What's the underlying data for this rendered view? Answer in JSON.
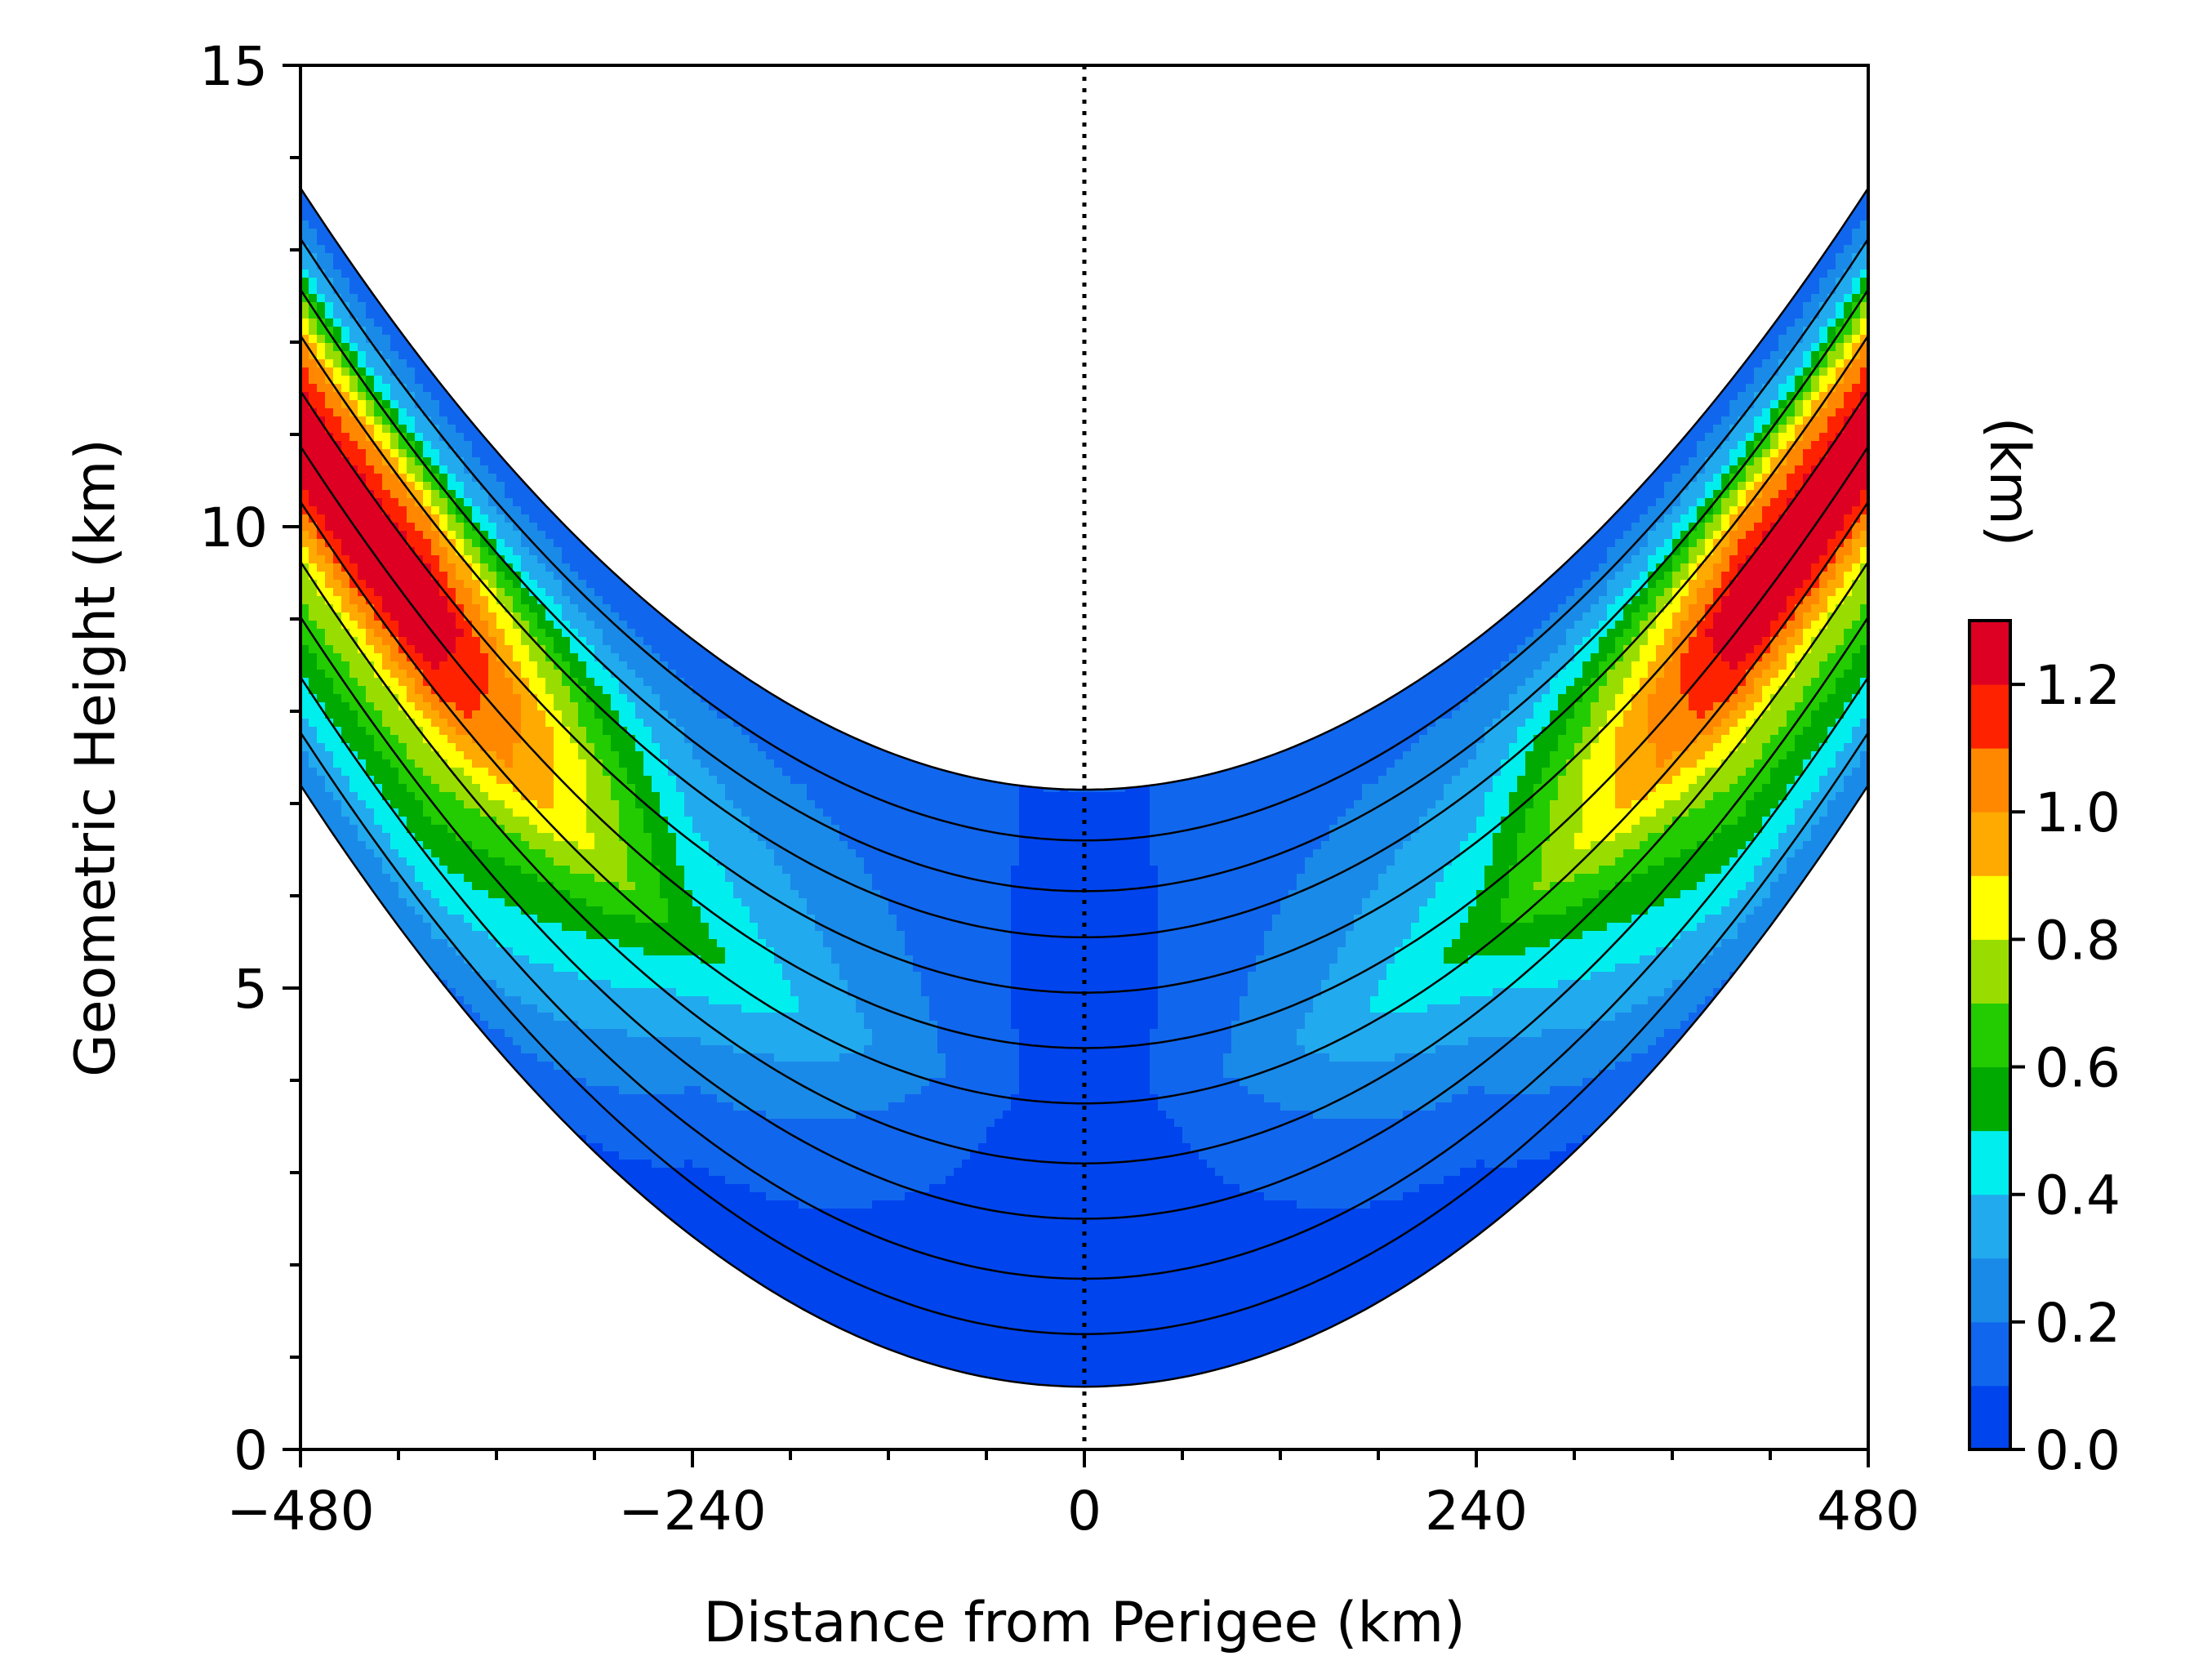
{
  "chart_data": {
    "type": "filled-contour",
    "xlabel": "Distance from Perigee (km)",
    "ylabel": "Geometric Height (km)",
    "xlim": [
      -480,
      480
    ],
    "ylim": [
      0,
      15
    ],
    "xticks": [
      {
        "value": -480,
        "label": "−480"
      },
      {
        "value": -240,
        "label": "−240"
      },
      {
        "value": 0,
        "label": "0"
      },
      {
        "value": 240,
        "label": "240"
      },
      {
        "value": 480,
        "label": "480"
      }
    ],
    "yticks": [
      {
        "value": 0,
        "label": "0"
      },
      {
        "value": 5,
        "label": "5"
      },
      {
        "value": 10,
        "label": "10"
      },
      {
        "value": 15,
        "label": "15"
      }
    ],
    "perigee_line_x": 0,
    "colorbar": {
      "label": "(km)",
      "range": [
        0.0,
        1.3
      ],
      "levels": [
        0.0,
        0.1,
        0.2,
        0.3,
        0.4,
        0.5,
        0.6,
        0.7,
        0.8,
        0.9,
        1.0,
        1.1,
        1.2,
        1.3
      ],
      "colors": [
        "#0044ee",
        "#1166ee",
        "#1a8ae8",
        "#22aaee",
        "#00eeee",
        "#00aa00",
        "#22cc00",
        "#99dd00",
        "#ffff00",
        "#ffaa00",
        "#ff8800",
        "#ff2200",
        "#dd0022",
        "#ff00ff"
      ],
      "ticks": [
        {
          "value": 0.0,
          "label": "0.0"
        },
        {
          "value": 0.2,
          "label": "0.2"
        },
        {
          "value": 0.4,
          "label": "0.4"
        },
        {
          "value": 0.6,
          "label": "0.6"
        },
        {
          "value": 0.8,
          "label": "0.8"
        },
        {
          "value": 1.0,
          "label": "1.0"
        },
        {
          "value": 1.2,
          "label": "1.2"
        }
      ]
    },
    "ray_paths": {
      "description": "black tangent-ray height curves",
      "perigee_heights_km": [
        0.68,
        1.25,
        1.85,
        2.5,
        3.1,
        3.75,
        4.35,
        4.95,
        5.55,
        6.05,
        6.6,
        7.15
      ],
      "curvature_km_per_km2": 2.83e-05
    },
    "band_profile": {
      "description": "perturbation value across the ray band at selected along-track distances (near/inner edge -> far/outer edge)",
      "at_distance_0": [
        0.1,
        0.05,
        0.02,
        0.0,
        0.0,
        0.0
      ],
      "at_distance_240": [
        0.1,
        0.25,
        0.35,
        0.45,
        0.55,
        0.35,
        0.2,
        0.1,
        0.02
      ],
      "at_distance_400": [
        0.1,
        0.4,
        1.0,
        1.3,
        1.2,
        0.8,
        0.6,
        0.4,
        0.2
      ]
    }
  }
}
